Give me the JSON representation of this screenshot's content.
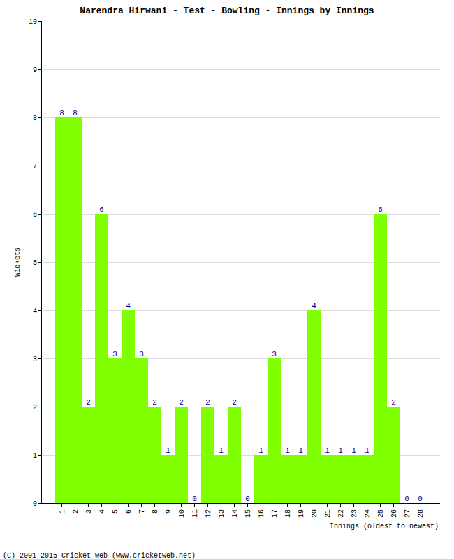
{
  "chart_data": {
    "type": "bar",
    "title": "Narendra Hirwani - Test - Bowling - Innings by Innings",
    "x_label": "Innings (oldest to newest)",
    "y_label": "Wickets",
    "annotations": [
      "(C) 2001-2015 Cricket Web (www.cricketweb.net)"
    ],
    "categories": [
      "1",
      "2",
      "3",
      "4",
      "5",
      "6",
      "7",
      "8",
      "9",
      "10",
      "11",
      "12",
      "13",
      "14",
      "15",
      "16",
      "17",
      "18",
      "19",
      "20",
      "21",
      "22",
      "23",
      "24",
      "25",
      "26",
      "27",
      "28"
    ],
    "values": [
      8,
      8,
      2,
      6,
      3,
      4,
      3,
      2,
      1,
      2,
      0,
      2,
      1,
      2,
      0,
      1,
      3,
      1,
      1,
      4,
      1,
      1,
      1,
      1,
      6,
      2,
      0,
      0
    ],
    "color": "#7fff00",
    "ylim": [
      0,
      10
    ],
    "yticks": [
      0,
      1,
      2,
      3,
      4,
      5,
      6,
      7,
      8,
      9,
      10
    ],
    "grid": true,
    "data_labels": true
  }
}
